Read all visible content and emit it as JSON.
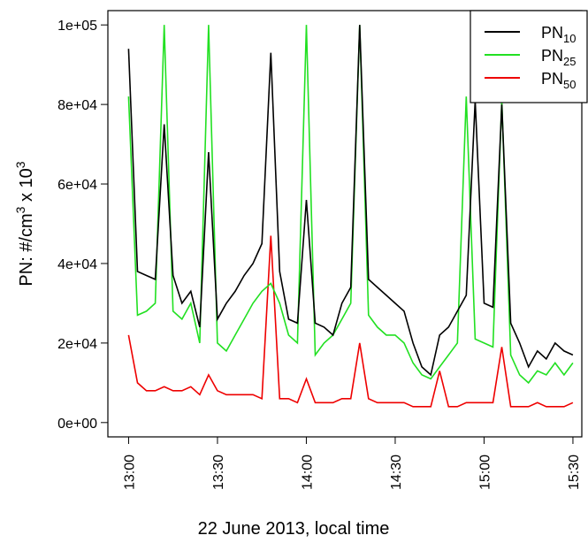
{
  "chart_data": {
    "type": "line",
    "xlabel": "22 June 2013, local time",
    "ylabel": [
      "PN: #/cm",
      "3",
      " x 10",
      "3"
    ],
    "x": [
      "13:00",
      "13:03",
      "13:06",
      "13:09",
      "13:12",
      "13:15",
      "13:18",
      "13:21",
      "13:24",
      "13:27",
      "13:30",
      "13:33",
      "13:36",
      "13:39",
      "13:42",
      "13:45",
      "13:48",
      "13:51",
      "13:54",
      "13:57",
      "14:00",
      "14:03",
      "14:06",
      "14:09",
      "14:12",
      "14:15",
      "14:18",
      "14:21",
      "14:24",
      "14:27",
      "14:30",
      "14:33",
      "14:36",
      "14:39",
      "14:42",
      "14:45",
      "14:48",
      "14:51",
      "14:54",
      "14:57",
      "15:00",
      "15:03",
      "15:06",
      "15:09",
      "15:12",
      "15:15",
      "15:18",
      "15:21",
      "15:24",
      "15:27",
      "15:30"
    ],
    "series": [
      {
        "name": "PN10",
        "color": "#000000",
        "values": [
          94000,
          38000,
          37000,
          36000,
          75000,
          37000,
          30000,
          33000,
          24000,
          68000,
          26000,
          30000,
          33000,
          37000,
          40000,
          45000,
          93000,
          38000,
          26000,
          25000,
          56000,
          25000,
          24000,
          22000,
          30000,
          34000,
          100000,
          36000,
          34000,
          32000,
          30000,
          28000,
          20000,
          14000,
          12000,
          22000,
          24000,
          28000,
          32000,
          81000,
          30000,
          29000,
          80000,
          25000,
          20000,
          14000,
          18000,
          16000,
          20000,
          18000,
          17000
        ]
      },
      {
        "name": "PN25",
        "color": "#22e022",
        "values": [
          82000,
          27000,
          28000,
          30000,
          100000,
          28000,
          26000,
          30000,
          20000,
          100000,
          20000,
          18000,
          22000,
          26000,
          30000,
          33000,
          35000,
          30000,
          22000,
          20000,
          100000,
          17000,
          20000,
          22000,
          26000,
          30000,
          100000,
          27000,
          24000,
          22000,
          22000,
          20000,
          15000,
          12000,
          11000,
          14000,
          17000,
          20000,
          82000,
          21000,
          20000,
          19000,
          81000,
          17000,
          12000,
          10000,
          13000,
          12000,
          15000,
          12000,
          15000
        ]
      },
      {
        "name": "PN50",
        "color": "#ee0000",
        "values": [
          22000,
          10000,
          8000,
          8000,
          9000,
          8000,
          8000,
          9000,
          7000,
          12000,
          8000,
          7000,
          7000,
          7000,
          7000,
          6000,
          47000,
          6000,
          6000,
          5000,
          11000,
          5000,
          5000,
          5000,
          6000,
          6000,
          20000,
          6000,
          5000,
          5000,
          5000,
          5000,
          4000,
          4000,
          4000,
          13000,
          4000,
          4000,
          5000,
          5000,
          5000,
          5000,
          19000,
          4000,
          4000,
          4000,
          5000,
          4000,
          4000,
          4000,
          5000
        ]
      }
    ],
    "xlim": [
      "12:53",
      "15:33"
    ],
    "xticks": [
      "13:00",
      "13:30",
      "14:00",
      "14:30",
      "15:00",
      "15:30"
    ],
    "ylim": [
      -3600,
      103600
    ],
    "yticks": [
      {
        "value": 0,
        "label": "0e+00"
      },
      {
        "value": 20000,
        "label": "2e+04"
      },
      {
        "value": 40000,
        "label": "4e+04"
      },
      {
        "value": 60000,
        "label": "6e+04"
      },
      {
        "value": 80000,
        "label": "8e+04"
      },
      {
        "value": 100000,
        "label": "1e+05"
      }
    ],
    "legend": "topright"
  }
}
